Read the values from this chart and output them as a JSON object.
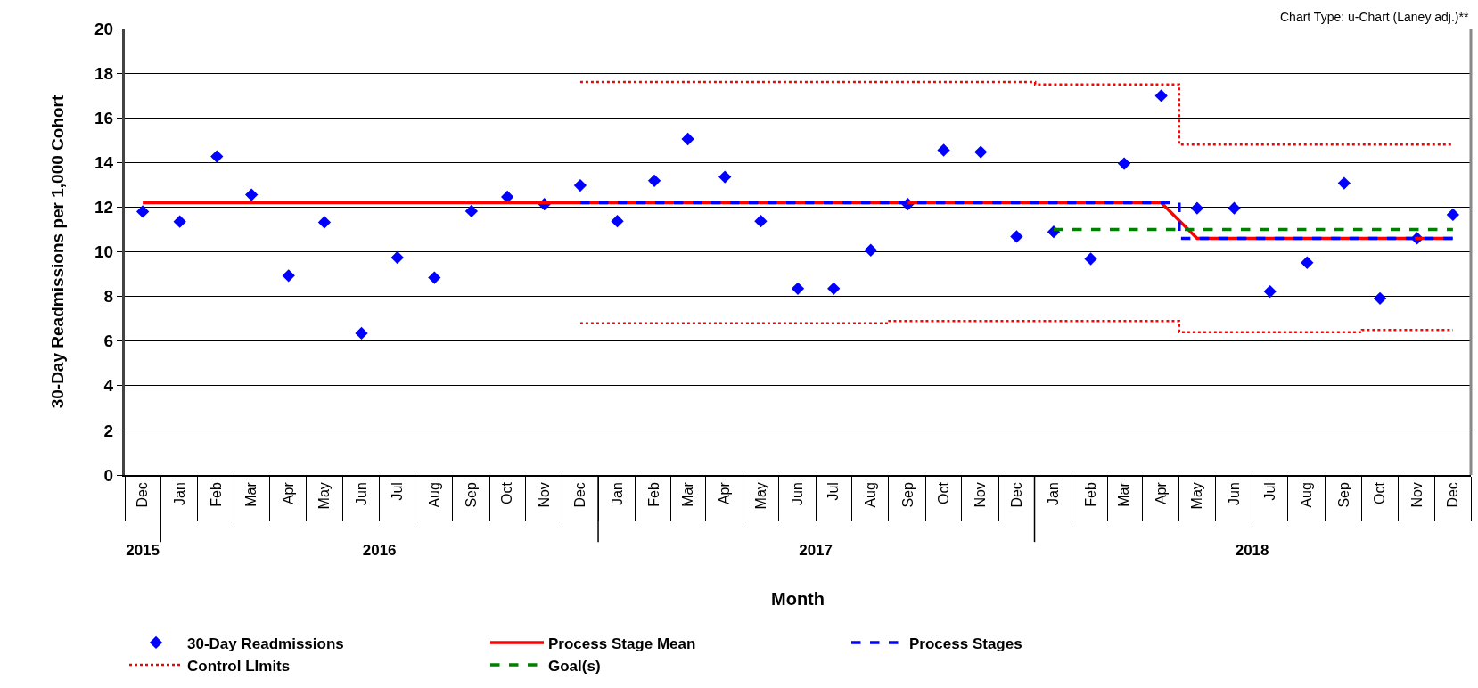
{
  "chart_data": {
    "type": "scatter",
    "annotations": [
      "Chart Type: u-Chart (Laney adj.)**"
    ],
    "xlabel": "Month",
    "ylabel": "30-Day Readmissions per 1,000 Cohort",
    "x": [
      "2015-12",
      "2016-01",
      "2016-02",
      "2016-03",
      "2016-04",
      "2016-05",
      "2016-06",
      "2016-07",
      "2016-08",
      "2016-09",
      "2016-10",
      "2016-11",
      "2016-12",
      "2017-01",
      "2017-02",
      "2017-03",
      "2017-04",
      "2017-05",
      "2017-06",
      "2017-07",
      "2017-08",
      "2017-09",
      "2017-10",
      "2017-11",
      "2017-12",
      "2018-01",
      "2018-02",
      "2018-03",
      "2018-04",
      "2018-05",
      "2018-06",
      "2018-07",
      "2018-08",
      "2018-09",
      "2018-10",
      "2018-11",
      "2018-12"
    ],
    "xlim": [
      "2015-11-16",
      "2018-12-16"
    ],
    "x2lim": [
      "2015-11-16",
      "2018-12-16"
    ],
    "xticks": [
      {
        "value": "2015-12",
        "label": "Dec"
      },
      {
        "value": "2016-01",
        "label": "Jan"
      },
      {
        "value": "2016-02",
        "label": "Feb"
      },
      {
        "value": "2016-03",
        "label": "Mar"
      },
      {
        "value": "2016-04",
        "label": "Apr"
      },
      {
        "value": "2016-05",
        "label": "May"
      },
      {
        "value": "2016-06",
        "label": "Jun"
      },
      {
        "value": "2016-07",
        "label": "Jul"
      },
      {
        "value": "2016-08",
        "label": "Aug"
      },
      {
        "value": "2016-09",
        "label": "Sep"
      },
      {
        "value": "2016-10",
        "label": "Oct"
      },
      {
        "value": "2016-11",
        "label": "Nov"
      },
      {
        "value": "2016-12",
        "label": "Dec"
      },
      {
        "value": "2017-01",
        "label": "Jan"
      },
      {
        "value": "2017-02",
        "label": "Feb"
      },
      {
        "value": "2017-03",
        "label": "Mar"
      },
      {
        "value": "2017-04",
        "label": "Apr"
      },
      {
        "value": "2017-05",
        "label": "May"
      },
      {
        "value": "2017-06",
        "label": "Jun"
      },
      {
        "value": "2017-07",
        "label": "Jul"
      },
      {
        "value": "2017-08",
        "label": "Aug"
      },
      {
        "value": "2017-09",
        "label": "Sep"
      },
      {
        "value": "2017-10",
        "label": "Oct"
      },
      {
        "value": "2017-11",
        "label": "Nov"
      },
      {
        "value": "2017-12",
        "label": "Dec"
      },
      {
        "value": "2018-01",
        "label": "Jan"
      },
      {
        "value": "2018-02",
        "label": "Feb"
      },
      {
        "value": "2018-03",
        "label": "Mar"
      },
      {
        "value": "2018-04",
        "label": "Apr"
      },
      {
        "value": "2018-05",
        "label": "May"
      },
      {
        "value": "2018-06",
        "label": "Jun"
      },
      {
        "value": "2018-07",
        "label": "Jul"
      },
      {
        "value": "2018-08",
        "label": "Aug"
      },
      {
        "value": "2018-09",
        "label": "Sep"
      },
      {
        "value": "2018-10",
        "label": "Oct"
      },
      {
        "value": "2018-11",
        "label": "Nov"
      },
      {
        "value": "2018-12",
        "label": "Dec"
      }
    ],
    "x2ticks": [
      {
        "value": "2015-12-01",
        "label": "2015"
      },
      {
        "value": "2016-06-16",
        "label": "2016"
      },
      {
        "value": "2017-06-16",
        "label": "2017"
      },
      {
        "value": "2018-06-16",
        "label": "2018"
      }
    ],
    "ylim": [
      0,
      20
    ],
    "yticks": [
      0,
      2,
      4,
      6,
      8,
      10,
      12,
      14,
      16,
      18,
      20
    ],
    "grid": "y",
    "legend": "bottom left",
    "series": [
      {
        "name": "30-Day Readmissions",
        "marker": "diamond",
        "color": "#0000ff",
        "values": [
          11.8,
          11.35,
          14.27,
          12.55,
          8.93,
          11.32,
          6.35,
          9.74,
          8.84,
          11.82,
          12.46,
          12.13,
          12.97,
          11.37,
          13.18,
          15.05,
          13.35,
          11.37,
          8.35,
          8.35,
          10.07,
          12.13,
          14.55,
          14.47,
          10.68,
          10.89,
          9.68,
          13.95,
          16.99,
          11.95,
          11.95,
          8.22,
          9.51,
          13.07,
          7.91,
          10.6,
          11.66
        ]
      },
      {
        "name": "Process Stage Mean",
        "type": "line",
        "line_style": "solid",
        "color": "#ff0000",
        "values": [
          12.2,
          12.2,
          12.2,
          12.2,
          12.2,
          12.2,
          12.2,
          12.2,
          12.2,
          12.2,
          12.2,
          12.2,
          12.2,
          12.2,
          12.2,
          12.2,
          12.2,
          12.2,
          12.2,
          12.2,
          12.2,
          12.2,
          12.2,
          12.2,
          12.2,
          12.2,
          12.2,
          12.2,
          12.2,
          10.6,
          10.6,
          10.6,
          10.6,
          10.6,
          10.6,
          10.6,
          10.6
        ]
      },
      {
        "name": "Process Stages",
        "type": "step",
        "line_style": "dashed",
        "color": "#0000ff",
        "values": [
          null,
          null,
          null,
          null,
          null,
          null,
          null,
          null,
          null,
          null,
          null,
          null,
          12.2,
          12.2,
          12.2,
          12.2,
          12.2,
          12.2,
          12.2,
          12.2,
          12.2,
          12.2,
          12.2,
          12.2,
          12.2,
          12.2,
          12.2,
          12.2,
          12.2,
          10.6,
          10.6,
          10.6,
          10.6,
          10.6,
          10.6,
          10.6,
          10.6
        ]
      },
      {
        "name": "Control LImits",
        "type": "step",
        "line_style": "dotted",
        "color": "#ff0000",
        "values": [
          null,
          null,
          null,
          null,
          null,
          null,
          null,
          null,
          null,
          null,
          null,
          null,
          17.6,
          17.6,
          17.6,
          17.6,
          17.6,
          17.6,
          17.6,
          17.6,
          17.6,
          17.6,
          17.6,
          17.6,
          17.6,
          17.5,
          17.5,
          17.5,
          17.5,
          14.8,
          14.8,
          14.8,
          14.8,
          14.8,
          14.8,
          14.8,
          14.8
        ]
      },
      {
        "type": "step",
        "line_style": "dotted",
        "color": "#ff0000",
        "values": [
          null,
          null,
          null,
          null,
          null,
          null,
          null,
          null,
          null,
          null,
          null,
          null,
          6.8,
          6.8,
          6.8,
          6.8,
          6.8,
          6.8,
          6.8,
          6.8,
          6.8,
          6.9,
          6.9,
          6.9,
          6.9,
          6.9,
          6.9,
          6.9,
          6.9,
          6.4,
          6.4,
          6.4,
          6.4,
          6.4,
          6.5,
          6.5,
          6.5
        ]
      },
      {
        "name": "Goal(s)",
        "type": "line",
        "line_style": "dashed",
        "color": "#008000",
        "values": [
          null,
          null,
          null,
          null,
          null,
          null,
          null,
          null,
          null,
          null,
          null,
          null,
          null,
          null,
          null,
          null,
          null,
          null,
          null,
          null,
          null,
          null,
          null,
          null,
          null,
          11,
          11,
          11,
          11,
          11,
          11,
          11,
          11,
          11,
          11,
          11,
          11
        ]
      }
    ]
  }
}
